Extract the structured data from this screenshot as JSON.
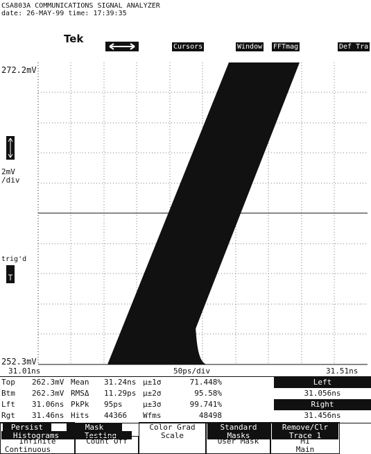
{
  "header": {
    "title": "CSA803A COMMUNICATIONS SIGNAL ANALYZER",
    "date_line": "date: 26-MAY-99 time: 17:39:35",
    "brand": "Tek"
  },
  "menu": {
    "buttons": [
      "Cursors",
      "Window",
      "FFTmag",
      "Def Tra"
    ]
  },
  "display": {
    "top_label": "272.2mV",
    "scale": "2mV",
    "scale_unit": "/div",
    "trigger": "trig'd",
    "bottom_label": "252.3mV",
    "x_left": "31.01ns",
    "x_scale": "50ps/div",
    "x_right": "31.51ns"
  },
  "measurements": {
    "rows": [
      [
        "Top",
        "262.3mV",
        "Mean",
        "31.24ns",
        "µ±1σ",
        "71.448%"
      ],
      [
        "Btm",
        "262.3mV",
        "RMSΔ",
        "11.29ps",
        "µ±2σ",
        "95.58%"
      ],
      [
        "Lft",
        "31.06ns",
        "PkPk",
        "95ps",
        "µ±3σ",
        "99.741%"
      ],
      [
        "Rgt",
        "31.46ns",
        "Hits",
        "44366",
        "Wfms",
        "48498"
      ]
    ],
    "cursor": [
      "Left",
      "31.056ns",
      "Right",
      "31.456ns"
    ]
  },
  "bottom_menu": {
    "persist": "Persist",
    "mask": "Mask",
    "histograms": "Histograms",
    "testing": "Testing",
    "color_grad": "Color Grad",
    "scale": "Scale",
    "standard": "Standard",
    "masks": "Masks",
    "remove_clr": "Remove/Clr",
    "trace": "Trace 1",
    "infinite": "Infinite",
    "continuous": "Continuous",
    "count_off": "Count Off",
    "user_mask": "User Mask",
    "m1": "M1",
    "main": "Main"
  }
}
